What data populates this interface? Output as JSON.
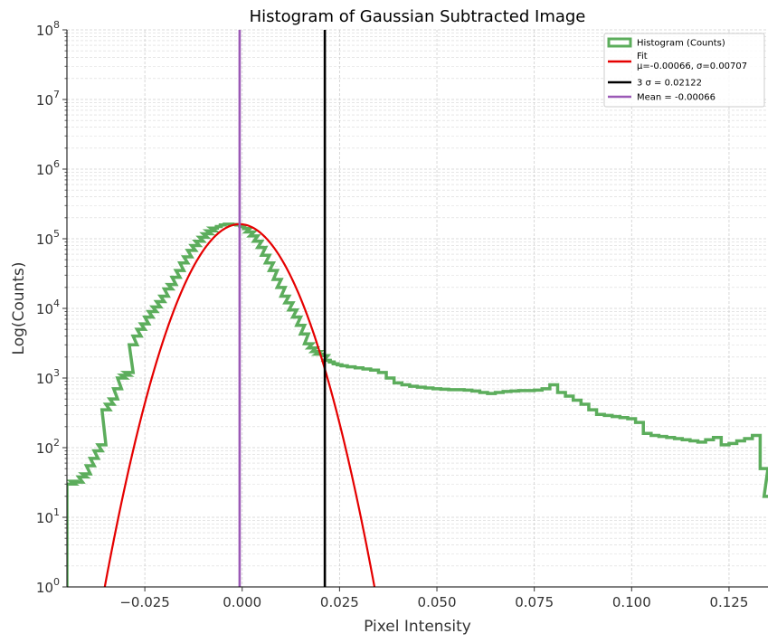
{
  "chart_data": {
    "type": "line",
    "title": "Histogram of Gaussian Subtracted Image",
    "xlabel": "Pixel Intensity",
    "ylabel": "Log(Counts)",
    "xlim": [
      -0.045,
      0.135
    ],
    "ylim": [
      1,
      100000000
    ],
    "yscale": "log",
    "grid": true,
    "legend_position": "top-right",
    "x_ticks": [
      "−0.025",
      "0.000",
      "0.025",
      "0.050",
      "0.075",
      "0.100",
      "0.125"
    ],
    "x_tick_values": [
      -0.025,
      0.0,
      0.025,
      0.05,
      0.075,
      0.1,
      0.125
    ],
    "y_ticks": [
      {
        "base": "10",
        "exp": "0"
      },
      {
        "base": "10",
        "exp": "1"
      },
      {
        "base": "10",
        "exp": "2"
      },
      {
        "base": "10",
        "exp": "3"
      },
      {
        "base": "10",
        "exp": "4"
      },
      {
        "base": "10",
        "exp": "5"
      },
      {
        "base": "10",
        "exp": "6"
      },
      {
        "base": "10",
        "exp": "7"
      },
      {
        "base": "10",
        "exp": "8"
      }
    ],
    "legend": [
      {
        "label": "Histogram (Counts)",
        "color": "#5cad5c",
        "style": "box"
      },
      {
        "label": "Fit",
        "label2": "μ=-0.00066, σ=0.00707",
        "color": "#e50000",
        "style": "line"
      },
      {
        "label": "3 σ  = 0.02122",
        "color": "#000000",
        "style": "line"
      },
      {
        "label": "Mean = -0.00066",
        "color": "#9b59b6",
        "style": "line"
      }
    ],
    "series": [
      {
        "name": "Histogram (Counts)",
        "kind": "step",
        "color": "#5cad5c",
        "x": [
          -0.045,
          -0.044,
          -0.043,
          -0.042,
          -0.041,
          -0.04,
          -0.039,
          -0.038,
          -0.037,
          -0.036,
          -0.035,
          -0.034,
          -0.033,
          -0.032,
          -0.031,
          -0.03,
          -0.029,
          -0.028,
          -0.027,
          -0.026,
          -0.025,
          -0.024,
          -0.023,
          -0.022,
          -0.021,
          -0.02,
          -0.019,
          -0.018,
          -0.017,
          -0.016,
          -0.015,
          -0.014,
          -0.013,
          -0.012,
          -0.011,
          -0.01,
          -0.009,
          -0.008,
          -0.007,
          -0.006,
          -0.005,
          -0.004,
          -0.003,
          -0.002,
          -0.001,
          0.0,
          0.001,
          0.002,
          0.003,
          0.004,
          0.005,
          0.006,
          0.007,
          0.008,
          0.009,
          0.01,
          0.011,
          0.012,
          0.013,
          0.014,
          0.015,
          0.016,
          0.017,
          0.018,
          0.019,
          0.02,
          0.021,
          0.022,
          0.023,
          0.024,
          0.025,
          0.027,
          0.029,
          0.031,
          0.033,
          0.035,
          0.037,
          0.039,
          0.041,
          0.043,
          0.045,
          0.047,
          0.049,
          0.051,
          0.053,
          0.055,
          0.057,
          0.059,
          0.061,
          0.063,
          0.065,
          0.067,
          0.069,
          0.071,
          0.073,
          0.075,
          0.077,
          0.079,
          0.081,
          0.083,
          0.085,
          0.087,
          0.089,
          0.091,
          0.093,
          0.095,
          0.097,
          0.099,
          0.101,
          0.103,
          0.105,
          0.107,
          0.109,
          0.111,
          0.113,
          0.115,
          0.117,
          0.119,
          0.121,
          0.123,
          0.125,
          0.127,
          0.129,
          0.131,
          0.133,
          0.134
        ],
        "y": [
          30,
          33,
          32,
          38,
          42,
          55,
          70,
          90,
          110,
          350,
          420,
          500,
          700,
          1000,
          1100,
          1200,
          3000,
          4000,
          5000,
          6000,
          7500,
          9000,
          10500,
          12500,
          15000,
          19000,
          22000,
          28000,
          35000,
          45000,
          55000,
          68000,
          80000,
          92000,
          105000,
          118000,
          130000,
          142000,
          150000,
          158000,
          162000,
          162000,
          160000,
          158000,
          150000,
          140000,
          125000,
          110000,
          92000,
          75000,
          58000,
          45000,
          35000,
          26000,
          20000,
          15000,
          12000,
          9500,
          7500,
          5700,
          4300,
          3100,
          2700,
          2400,
          2200,
          2100,
          1800,
          1700,
          1600,
          1550,
          1500,
          1450,
          1400,
          1350,
          1300,
          1200,
          1000,
          850,
          800,
          760,
          740,
          720,
          700,
          690,
          680,
          680,
          670,
          650,
          620,
          600,
          620,
          640,
          650,
          660,
          660,
          670,
          700,
          800,
          620,
          550,
          480,
          420,
          350,
          300,
          290,
          280,
          270,
          260,
          230,
          160,
          150,
          145,
          140,
          135,
          130,
          125,
          120,
          130,
          140,
          110,
          115,
          125,
          135,
          150,
          50,
          20
        ],
        "step_width": 0.002
      },
      {
        "name": "Fit",
        "kind": "gaussian",
        "color": "#e50000",
        "mu": -0.00066,
        "sigma": 0.00707,
        "amplitude": 162000
      },
      {
        "name": "3 σ",
        "kind": "vline",
        "color": "#000000",
        "x_value": 0.02122
      },
      {
        "name": "Mean",
        "kind": "vline",
        "color": "#9b59b6",
        "x_value": -0.00066
      }
    ]
  }
}
